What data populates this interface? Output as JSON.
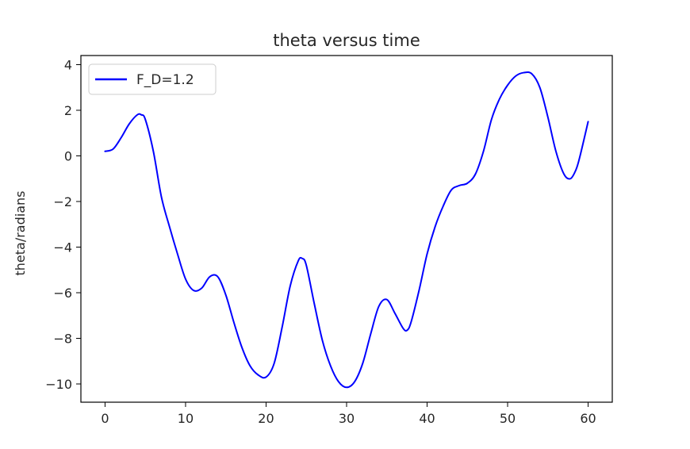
{
  "chart_data": {
    "type": "line",
    "title": "theta versus time",
    "xlabel": "",
    "ylabel": "theta/radians",
    "xlim": [
      -3,
      63
    ],
    "ylim": [
      -10.8,
      4.4
    ],
    "xticks": [
      0,
      10,
      20,
      30,
      40,
      50,
      60
    ],
    "yticks": [
      4,
      2,
      0,
      -2,
      -4,
      -6,
      -8,
      -10
    ],
    "xtick_labels": [
      "0",
      "10",
      "20",
      "30",
      "40",
      "50",
      "60"
    ],
    "ytick_labels": [
      "4",
      "2",
      "0",
      "−2",
      "−4",
      "−6",
      "−8",
      "−10"
    ],
    "grid": false,
    "legend_position": "top-left",
    "series": [
      {
        "name": "F_D=1.2",
        "color": "#0000ff",
        "x": [
          0,
          1,
          2,
          3,
          4,
          4.5,
          5,
          6,
          7,
          8,
          9,
          10,
          11,
          12,
          13,
          14,
          15,
          16,
          17,
          18,
          19,
          20,
          21,
          22,
          23,
          24,
          24.5,
          25,
          26,
          27,
          28,
          29,
          30,
          31,
          32,
          33,
          34,
          35,
          36,
          37,
          37.5,
          38,
          39,
          40,
          41,
          42,
          43,
          44,
          45,
          46,
          47,
          48,
          49,
          50,
          51,
          52,
          53,
          54,
          55,
          56,
          57,
          57.8,
          58.5,
          59,
          60
        ],
        "y": [
          0.2,
          0.3,
          0.8,
          1.4,
          1.8,
          1.8,
          1.6,
          0.2,
          -1.8,
          -3.1,
          -4.3,
          -5.4,
          -5.9,
          -5.8,
          -5.3,
          -5.3,
          -6.1,
          -7.3,
          -8.4,
          -9.2,
          -9.6,
          -9.7,
          -9.1,
          -7.5,
          -5.7,
          -4.6,
          -4.5,
          -4.8,
          -6.5,
          -8.1,
          -9.2,
          -9.9,
          -10.15,
          -9.9,
          -9.1,
          -7.8,
          -6.6,
          -6.3,
          -6.9,
          -7.55,
          -7.65,
          -7.3,
          -5.9,
          -4.3,
          -3.1,
          -2.2,
          -1.5,
          -1.3,
          -1.2,
          -0.8,
          0.2,
          1.6,
          2.5,
          3.1,
          3.5,
          3.65,
          3.6,
          3.0,
          1.7,
          0.2,
          -0.8,
          -1.0,
          -0.6,
          0.0,
          1.5
        ]
      }
    ]
  }
}
